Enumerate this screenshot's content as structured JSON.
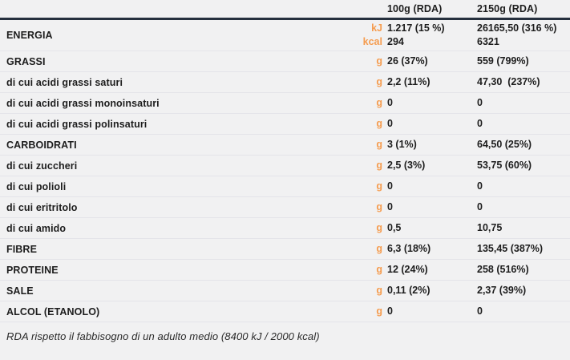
{
  "chart_data": {
    "type": "table",
    "columns": [
      "100g (RDA)",
      "2150g (RDA)"
    ],
    "rows": [
      {
        "label": "ENERGIA",
        "level": "main",
        "units": [
          "kJ",
          "kcal"
        ],
        "per_100g": [
          "1.217 (15 %)",
          "294"
        ],
        "per_2150g": [
          "26165,50 (316 %)",
          "6321"
        ]
      },
      {
        "label": "GRASSI",
        "level": "main",
        "units": [
          "g"
        ],
        "per_100g": [
          "26 (37%)"
        ],
        "per_2150g": [
          "559 (799%)"
        ]
      },
      {
        "label": "di cui acidi grassi saturi",
        "level": "sub",
        "units": [
          "g"
        ],
        "per_100g": [
          "2,2 (11%)"
        ],
        "per_2150g": [
          "47,30  (237%)"
        ]
      },
      {
        "label": "di cui acidi grassi monoinsaturi",
        "level": "sub",
        "units": [
          "g"
        ],
        "per_100g": [
          "0"
        ],
        "per_2150g": [
          "0"
        ]
      },
      {
        "label": "di cui acidi grassi polinsaturi",
        "level": "sub",
        "units": [
          "g"
        ],
        "per_100g": [
          "0"
        ],
        "per_2150g": [
          "0"
        ]
      },
      {
        "label": "CARBOIDRATI",
        "level": "main",
        "units": [
          "g"
        ],
        "per_100g": [
          "3 (1%)"
        ],
        "per_2150g": [
          "64,50 (25%)"
        ]
      },
      {
        "label": "di cui zuccheri",
        "level": "sub",
        "units": [
          "g"
        ],
        "per_100g": [
          "2,5 (3%)"
        ],
        "per_2150g": [
          "53,75 (60%)"
        ]
      },
      {
        "label": "di cui polioli",
        "level": "sub",
        "units": [
          "g"
        ],
        "per_100g": [
          "0"
        ],
        "per_2150g": [
          "0"
        ]
      },
      {
        "label": "di cui eritritolo",
        "level": "sub",
        "units": [
          "g"
        ],
        "per_100g": [
          "0"
        ],
        "per_2150g": [
          "0"
        ]
      },
      {
        "label": "di cui amido",
        "level": "sub",
        "units": [
          "g"
        ],
        "per_100g": [
          "0,5"
        ],
        "per_2150g": [
          "10,75"
        ]
      },
      {
        "label": "FIBRE",
        "level": "main",
        "units": [
          "g"
        ],
        "per_100g": [
          "6,3 (18%)"
        ],
        "per_2150g": [
          "135,45 (387%)"
        ]
      },
      {
        "label": "PROTEINE",
        "level": "main",
        "units": [
          "g"
        ],
        "per_100g": [
          "12 (24%)"
        ],
        "per_2150g": [
          "258 (516%)"
        ]
      },
      {
        "label": "SALE",
        "level": "main",
        "units": [
          "g"
        ],
        "per_100g": [
          "0,11 (2%)"
        ],
        "per_2150g": [
          "2,37 (39%)"
        ]
      },
      {
        "label": "ALCOL (ETANOLO)",
        "level": "main",
        "units": [
          "g"
        ],
        "per_100g": [
          "0"
        ],
        "per_2150g": [
          "0"
        ]
      }
    ],
    "footnote": "RDA rispetto il fabbisogno di un adulto medio (8400 kJ / 2000 kcal)"
  },
  "colors": {
    "background": "#F1F1F2",
    "accent_unit": "#F59C4F",
    "header_divider": "#26303E",
    "row_divider": "#E4E4E9",
    "text": "#1D1D1D"
  }
}
